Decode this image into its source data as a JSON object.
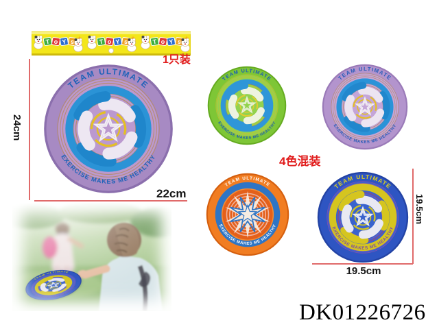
{
  "page": {
    "background": "#ffffff",
    "product_code": "DK01226726"
  },
  "header_card": {
    "brand": "ToYs",
    "letters": [
      "T",
      "o",
      "Y",
      "s"
    ],
    "block_colors": [
      "#3fae3f",
      "#e03838",
      "#2e6fd0",
      "#f0a020"
    ],
    "bg": "#f3e61a"
  },
  "annotations": {
    "pack_single": "1只装",
    "pack_mixed": "4色混装",
    "large_height": "24cm",
    "large_width": "22cm",
    "small_height": "19.5cm",
    "small_width": "19.5cm",
    "label_color": "#e11c1c",
    "line_color": "#e06a6a"
  },
  "disc_text": {
    "top": "TEAM ULTIMATE",
    "bottom": "EXERCISE MAKES ME HEALTHY"
  },
  "frisbees": [
    {
      "name": "large-purple-disc",
      "design": "swirl",
      "body": "#a78ac3",
      "rim": "#8b6fad",
      "inner": "#bb99cf",
      "band": "#2b93d6",
      "rings": [
        "#b5895f",
        "#b5895f"
      ],
      "accent": "#e3bf25",
      "blade_a": "#ede7f2",
      "blade_b": "#1f86cb",
      "star": "#f2eef5",
      "text_top": "#1e62b8",
      "text_bottom": "#1e62b8"
    },
    {
      "name": "green-disc",
      "design": "swirl",
      "body": "#7ec636",
      "rim": "#65ab21",
      "inner": "#92d24e",
      "band": "#2f96d8",
      "rings": [
        "#d2bc2a",
        "#c64848"
      ],
      "accent": "#e0cc30",
      "blade_a": "#eef3e0",
      "blade_b": "#2f96d8",
      "star": "#e9f2d8",
      "text_top": "#1b5cb4",
      "text_bottom": "#1b5cb4"
    },
    {
      "name": "small-purple-disc",
      "design": "swirl",
      "body": "#b394cd",
      "rim": "#9a7ab8",
      "inner": "#c4a5d8",
      "band": "#2a93d8",
      "rings": [
        "#b5895f",
        "#b5895f"
      ],
      "accent": "#e3bf25",
      "blade_a": "#ece5f1",
      "blade_b": "#2187cd",
      "star": "#f2eef5",
      "text_top": "#2a5cb8",
      "text_bottom": "#2a5cb8"
    },
    {
      "name": "orange-disc",
      "design": "starburst",
      "body": "#f17d22",
      "rim": "#d55f0e",
      "inner": "#f58c33",
      "band": "#2e75c5",
      "ring_a": "#e4601a",
      "ring_b": "#f0b29c",
      "star_white": "#f6ece2",
      "star_blue": "#2e75c5",
      "text_top": "#ffffff",
      "text_bottom": "#ffffff",
      "band_r": 70,
      "band_w": 15,
      "top_r": 84,
      "bottom_r": 72
    },
    {
      "name": "blue-disc",
      "design": "swirl",
      "body": "#2e55c2",
      "rim": "#2343a4",
      "inner": "#3a63cd",
      "band": "#d5c51f",
      "rings": [
        "#9a4fb0",
        "#c93a50"
      ],
      "accent": "#d5c51f",
      "blade_a": "#e9e9f2",
      "blade_b": "#d5c51f",
      "star": "#eef0f6",
      "text_top": "#e2d11c",
      "text_bottom": "#7b4fa6",
      "band_r": 66,
      "band_w": 15,
      "bottom_r": 70
    },
    {
      "name": "photo-blue-disc",
      "design": "swirl",
      "body": "#2e55c2",
      "rim": "#2343a4",
      "inner": "#3a63cd",
      "band": "#d5c51f",
      "rings": [
        "#9a4fb0",
        "#c93a50"
      ],
      "accent": "#d5c51f",
      "blade_a": "#e9e9f2",
      "blade_b": "#d5c51f",
      "star": "#eef0f6",
      "text_top": "#e2d11c",
      "text_bottom": "#7b4fa6"
    }
  ],
  "photo": {
    "subject": "two kids playing with a blue flying disc in a park"
  }
}
